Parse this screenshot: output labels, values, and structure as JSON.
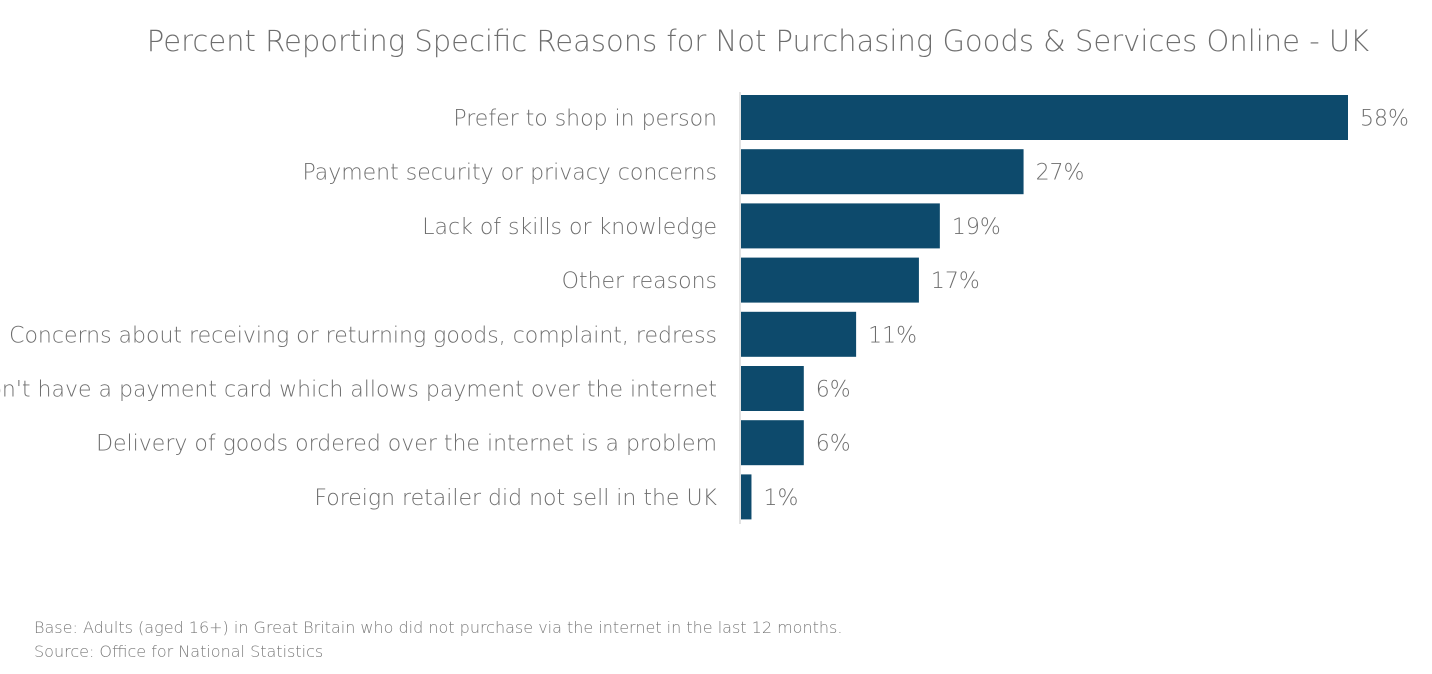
{
  "chart_data": {
    "type": "bar",
    "orientation": "horizontal",
    "title": "Percent Reporting Specific Reasons for Not Purchasing Goods & Services Online - UK",
    "categories": [
      "Prefer to shop in person",
      "Payment security or privacy concerns",
      "Lack of skills or knowledge",
      "Other reasons",
      "Concerns about receiving or returning goods, complaint, redress",
      "Don't have a payment card which allows payment over the internet",
      "Delivery of goods ordered over the internet is a problem",
      "Foreign retailer did not sell in the UK"
    ],
    "values": [
      58,
      27,
      19,
      17,
      11,
      6,
      6,
      1
    ],
    "value_labels": [
      "58%",
      "27%",
      "19%",
      "17%",
      "11%",
      "6%",
      "6%",
      "1%"
    ],
    "unit": "%",
    "xlim": [
      0,
      58
    ],
    "grid": false,
    "legend": "none",
    "bar_color": "#0d4a6c",
    "axis_color": "#d9d9d9"
  },
  "notes": {
    "base": "Base: Adults (aged 16+) in Great Britain who did not purchase via the internet in the last 12 months.",
    "source": "Source: Office for National Statistics"
  }
}
